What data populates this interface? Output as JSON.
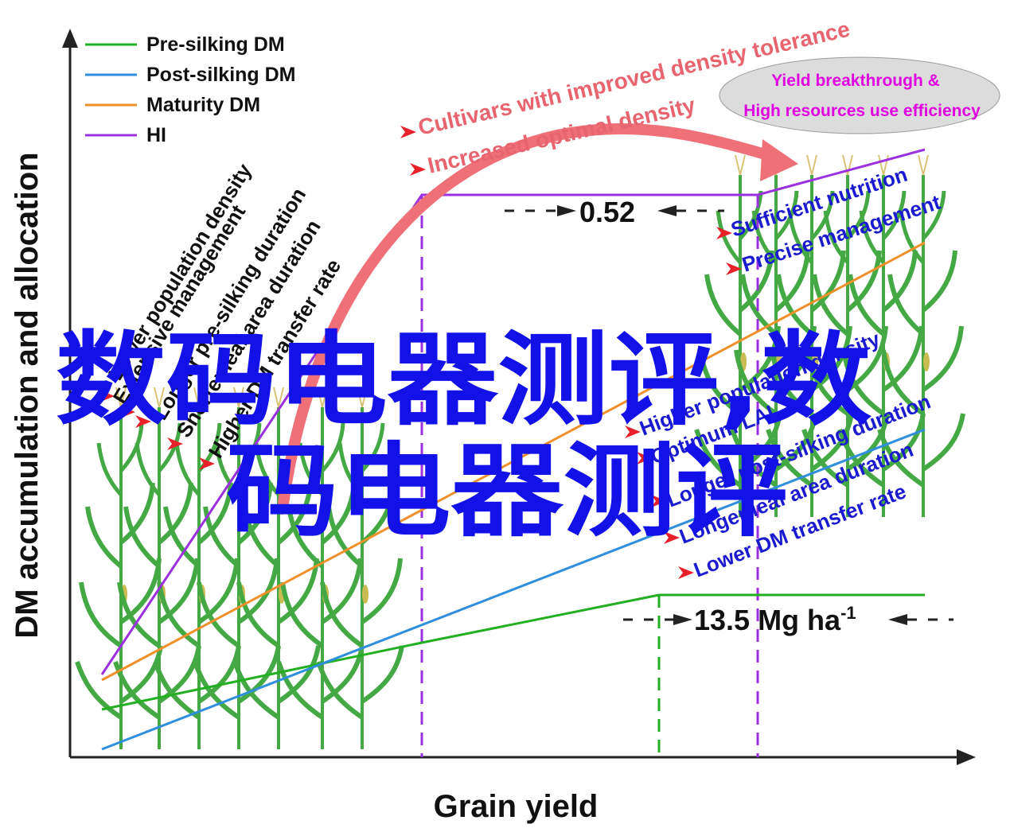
{
  "axes": {
    "x_label": "Grain yield",
    "y_label": "DM accumulation and allocation"
  },
  "legend": [
    {
      "label": "Pre-silking DM",
      "color": "#22b022"
    },
    {
      "label": "Post-silking DM",
      "color": "#2f8fdc"
    },
    {
      "label": "Maturity DM",
      "color": "#f0902a"
    },
    {
      "label": "HI",
      "color": "#8a2be2"
    }
  ],
  "left_factors": [
    "Lower population density",
    "Extensive management",
    "Longer pre-silking duration",
    "Shorter leaf area duration",
    "Higher DM transfer rate"
  ],
  "right_factors_top": [
    "Sufficient nutrition",
    "Precise management"
  ],
  "right_factors_bottom": [
    "Higher population density",
    "Optimum LAI",
    "Longer post-silking duration",
    "Longer leaf area duration",
    "Lower DM transfer rate"
  ],
  "arrow_labels": [
    "Cultivars with improved density tolerance",
    "Increased optimal density"
  ],
  "ellipse": {
    "line1": "Yield breakthrough &",
    "line2": "High resources use efficiency"
  },
  "annotations": {
    "hi_gap": "0.52",
    "yield_gap": "13.5 Mg ha",
    "yield_gap_sup": "-1"
  },
  "watermark": {
    "line1": "数码电器测评,数",
    "line2": "码电器测评"
  },
  "colors": {
    "arrow": "#f07078",
    "ellipse_fill": "#dcdcdc",
    "plant": "#3aa53a"
  }
}
